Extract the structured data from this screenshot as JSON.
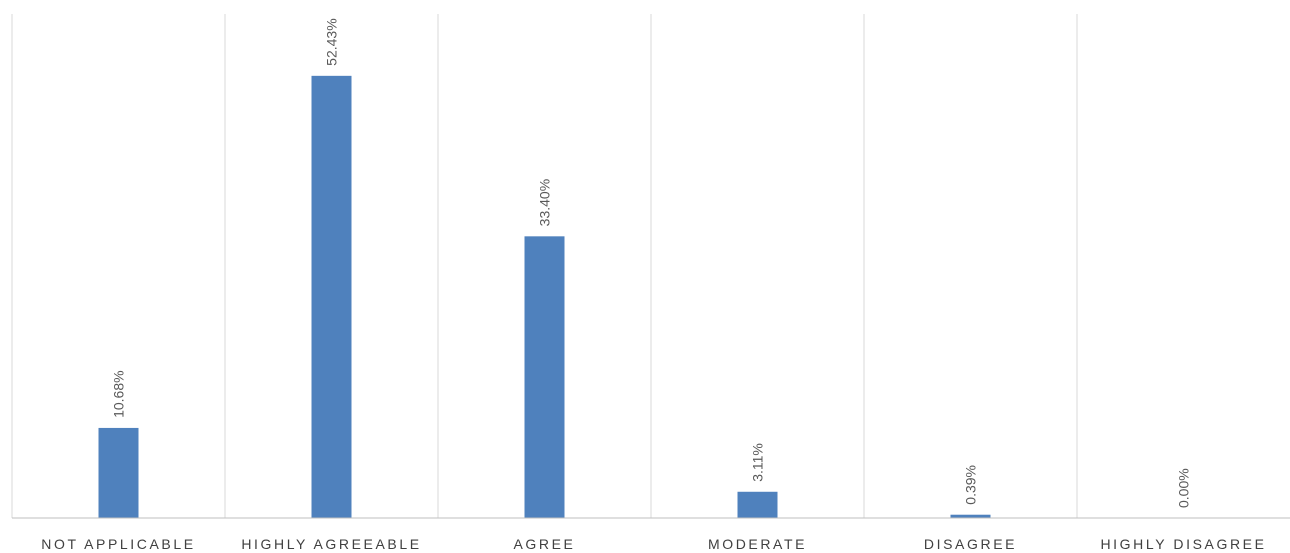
{
  "chart_data": {
    "type": "bar",
    "categories": [
      "NOT APPLICABLE",
      "HIGHLY AGREEABLE",
      "AGREE",
      "MODERATE",
      "DISAGREE",
      "HIGHLY DISAGREE"
    ],
    "values": [
      10.68,
      52.43,
      33.4,
      3.11,
      0.39,
      0.0
    ],
    "data_labels": [
      "10.68%",
      "52.43%",
      "33.40%",
      "3.11%",
      "0.39%",
      "0.00%"
    ],
    "value_unit": "%",
    "ylim": [
      0,
      60
    ],
    "grid": "vertical",
    "legend": "none",
    "colors": {
      "bar": "#4f81bd",
      "gridline": "#d9d9d9",
      "axis": "#bfbfbf",
      "label_text": "#595959",
      "category_text": "#404040"
    }
  }
}
